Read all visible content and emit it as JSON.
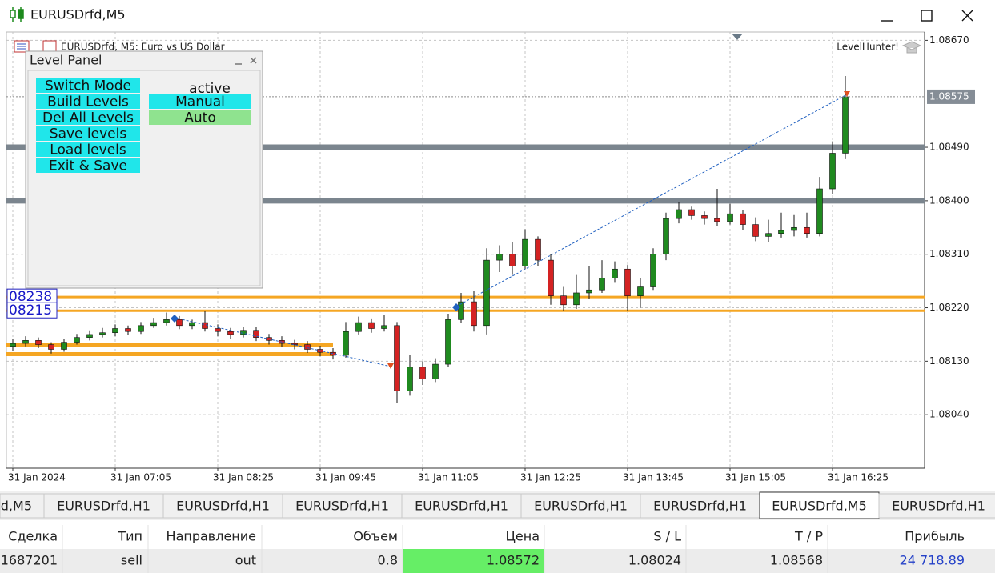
{
  "window": {
    "title": "EURUSDrfd,M5"
  },
  "chart_data": {
    "type": "candlestick",
    "title": "EURUSDrfd, M5:  Euro vs US Dollar",
    "indicator": "LevelHunter!",
    "categories": [
      "31 Jan 2024",
      null,
      null,
      null,
      null,
      null,
      null,
      null,
      "31 Jan 07:05",
      null,
      null,
      null,
      null,
      null,
      null,
      null,
      "31 Jan 08:25",
      null,
      null,
      null,
      null,
      null,
      null,
      null,
      "31 Jan 09:45",
      null,
      null,
      null,
      null,
      null,
      null,
      null,
      "31 Jan 11:05",
      null,
      null,
      null,
      null,
      null,
      null,
      null,
      "31 Jan 12:25",
      null,
      null,
      null,
      null,
      null,
      null,
      null,
      "31 Jan 13:45",
      null,
      null,
      null,
      null,
      null,
      null,
      null,
      "31 Jan 15:05",
      null,
      null,
      null,
      null,
      null,
      null,
      null,
      "31 Jan 16:25",
      null
    ],
    "candles": [
      [
        1.08155,
        1.08168,
        1.08148,
        1.0816
      ],
      [
        1.0816,
        1.08172,
        1.08155,
        1.08165
      ],
      [
        1.08165,
        1.0817,
        1.08152,
        1.08158
      ],
      [
        1.08158,
        1.08162,
        1.08143,
        1.0815
      ],
      [
        1.0815,
        1.08168,
        1.08146,
        1.08162
      ],
      [
        1.08162,
        1.08176,
        1.08158,
        1.0817
      ],
      [
        1.0817,
        1.08182,
        1.08165,
        1.08175
      ],
      [
        1.08175,
        1.08186,
        1.0817,
        1.08178
      ],
      [
        1.08178,
        1.08192,
        1.08172,
        1.08185
      ],
      [
        1.08185,
        1.0819,
        1.08174,
        1.0818
      ],
      [
        1.0818,
        1.08196,
        1.08176,
        1.0819
      ],
      [
        1.0819,
        1.08203,
        1.08186,
        1.08195
      ],
      [
        1.08195,
        1.08212,
        1.0819,
        1.082
      ],
      [
        1.082,
        1.08206,
        1.08184,
        1.0819
      ],
      [
        1.0819,
        1.082,
        1.08184,
        1.08195
      ],
      [
        1.08195,
        1.08214,
        1.0818,
        1.08185
      ],
      [
        1.08185,
        1.08192,
        1.08172,
        1.0818
      ],
      [
        1.0818,
        1.08186,
        1.08168,
        1.08175
      ],
      [
        1.08175,
        1.08188,
        1.0817,
        1.08182
      ],
      [
        1.08182,
        1.08188,
        1.08164,
        1.0817
      ],
      [
        1.0817,
        1.08176,
        1.08158,
        1.08165
      ],
      [
        1.08165,
        1.08172,
        1.08154,
        1.0816
      ],
      [
        1.0816,
        1.08166,
        1.0815,
        1.08158
      ],
      [
        1.08158,
        1.08164,
        1.08144,
        1.0815
      ],
      [
        1.0815,
        1.08156,
        1.08138,
        1.08145
      ],
      [
        1.08145,
        1.08152,
        1.08133,
        1.0814
      ],
      [
        1.0814,
        1.08196,
        1.08136,
        1.0818
      ],
      [
        1.0818,
        1.08205,
        1.08175,
        1.08195
      ],
      [
        1.08195,
        1.08202,
        1.08178,
        1.08185
      ],
      [
        1.08185,
        1.08208,
        1.0818,
        1.0819
      ],
      [
        1.0819,
        1.08196,
        1.0806,
        1.0808
      ],
      [
        1.0808,
        1.0814,
        1.08072,
        1.0812
      ],
      [
        1.0812,
        1.0813,
        1.0809,
        1.081
      ],
      [
        1.081,
        1.08135,
        1.08095,
        1.08125
      ],
      [
        1.08125,
        1.0821,
        1.0812,
        1.082
      ],
      [
        1.082,
        1.08245,
        1.08195,
        1.0823
      ],
      [
        1.0823,
        1.08248,
        1.0818,
        1.0819
      ],
      [
        1.0819,
        1.0832,
        1.08175,
        1.083
      ],
      [
        1.083,
        1.08325,
        1.0828,
        1.0831
      ],
      [
        1.0831,
        1.0833,
        1.08275,
        1.0829
      ],
      [
        1.0829,
        1.08352,
        1.08285,
        1.08335
      ],
      [
        1.08335,
        1.0834,
        1.0829,
        1.083
      ],
      [
        1.083,
        1.0831,
        1.08225,
        1.0824
      ],
      [
        1.0824,
        1.08255,
        1.08215,
        1.08225
      ],
      [
        1.08225,
        1.08275,
        1.08218,
        1.08245
      ],
      [
        1.08245,
        1.0829,
        1.08235,
        1.0825
      ],
      [
        1.0825,
        1.083,
        1.08245,
        1.0827
      ],
      [
        1.0827,
        1.08298,
        1.08262,
        1.08285
      ],
      [
        1.08285,
        1.08292,
        1.08215,
        1.0824
      ],
      [
        1.0824,
        1.0827,
        1.0822,
        1.08255
      ],
      [
        1.08255,
        1.0832,
        1.0825,
        1.0831
      ],
      [
        1.0831,
        1.0838,
        1.083,
        1.0837
      ],
      [
        1.0837,
        1.08398,
        1.08362,
        1.08385
      ],
      [
        1.08385,
        1.0839,
        1.08368,
        1.08375
      ],
      [
        1.08375,
        1.08382,
        1.0836,
        1.0837
      ],
      [
        1.0837,
        1.0842,
        1.08358,
        1.08365
      ],
      [
        1.08365,
        1.08395,
        1.0836,
        1.08378
      ],
      [
        1.08378,
        1.08384,
        1.0835,
        1.0836
      ],
      [
        1.0836,
        1.08372,
        1.08332,
        1.0834
      ],
      [
        1.0834,
        1.08368,
        1.0833,
        1.08345
      ],
      [
        1.08345,
        1.0838,
        1.08338,
        1.0835
      ],
      [
        1.0835,
        1.08376,
        1.0834,
        1.08355
      ],
      [
        1.08355,
        1.0838,
        1.08338,
        1.08345
      ],
      [
        1.08345,
        1.0844,
        1.0834,
        1.0842
      ],
      [
        1.0842,
        1.085,
        1.08412,
        1.0848
      ],
      [
        1.0848,
        1.0861,
        1.0847,
        1.08575
      ]
    ],
    "up_color": "#1f8a1f",
    "down_color": "#d42222",
    "ylim": [
      1.0795,
      1.08684
    ],
    "yticks": [
      {
        "value": 1.0867,
        "label": "1.08670"
      },
      {
        "value": 1.0849,
        "label": "1.08490"
      },
      {
        "value": 1.084,
        "label": "1.08400"
      },
      {
        "value": 1.0831,
        "label": "1.08310"
      },
      {
        "value": 1.0822,
        "label": "1.08220"
      },
      {
        "value": 1.0813,
        "label": "1.08130"
      },
      {
        "value": 1.0804,
        "label": "1.08040"
      }
    ],
    "grid": true,
    "current_price": 1.08575,
    "levels": [
      1.0849,
      1.084
    ],
    "level_color": "#7b858e",
    "marked_levels": [
      {
        "value": 1.08238,
        "label": "08238"
      },
      {
        "value": 1.08215,
        "label": "08215"
      }
    ],
    "short_levels": [
      1.08158,
      1.08142
    ],
    "marked_level_color": "#f5a623"
  },
  "panel": {
    "title": "Level Panel",
    "buttons": [
      "Switch Mode",
      "Build Levels",
      "Del All Levels",
      "Save levels",
      "Load levels",
      "Exit & Save"
    ],
    "status": "active",
    "modes": [
      "Manual",
      "Auto"
    ]
  },
  "tabs": [
    "d,M5",
    "EURUSDrfd,H1",
    "EURUSDrfd,H1",
    "EURUSDrfd,H1",
    "EURUSDrfd,H1",
    "EURUSDrfd,H1",
    "EURUSDrfd,H1",
    "EURUSDrfd,M5",
    "EURUSDrfd,H1"
  ],
  "active_tab": 7,
  "table": {
    "header": [
      "Сделка",
      "Тип",
      "Направление",
      "Объем",
      "Цена",
      "S / L",
      "T / P",
      "Прибыль"
    ],
    "rows": [
      [
        "1687201",
        "sell",
        "out",
        "0.8",
        "1.08572",
        "1.08024",
        "1.08568",
        "24 718.89"
      ]
    ]
  }
}
